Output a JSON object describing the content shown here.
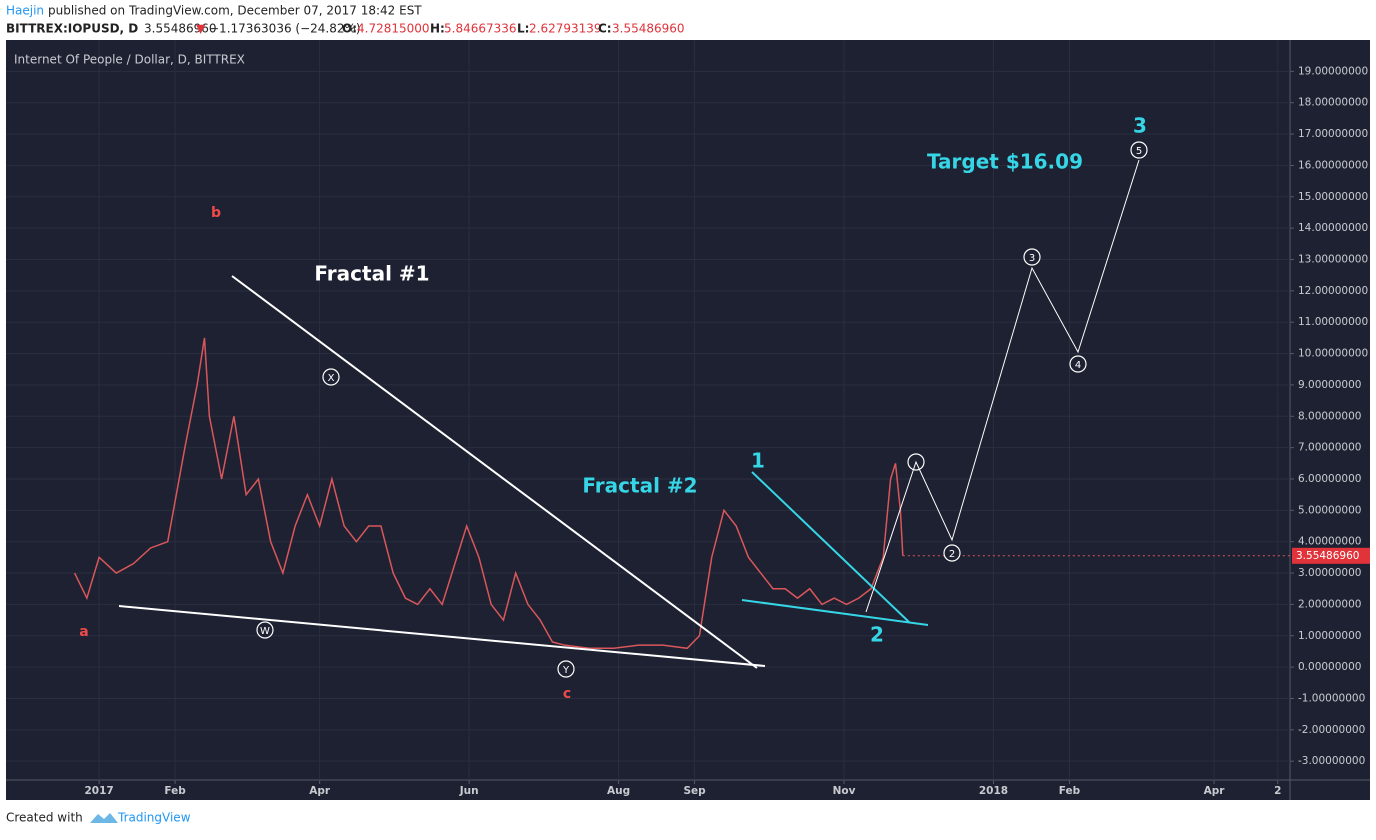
{
  "header": {
    "author": "Haejin",
    "published": "published on TradingView.com, December 07, 2017 18:42 EST",
    "symbol": "BITTREX:IOPUSD, D",
    "last": "3.55486960",
    "arrow": "▼",
    "change": "−1.17363036 (−24.82%)",
    "open_label": "O:",
    "open": "4.72815000",
    "high_label": "H:",
    "high": "5.84667336",
    "low_label": "L:",
    "low": "2.62793139",
    "close_label": "C:",
    "close": "3.55486960"
  },
  "footer": {
    "created": "Created with",
    "brand": "TradingView"
  },
  "annotations": {
    "a": "a",
    "b": "b",
    "c": "c",
    "fractal1": "Fractal #1",
    "fractal2": "Fractal #2",
    "w1": "1",
    "w2": "2",
    "w3": "3",
    "target": "Target $16.09",
    "cx": "X",
    "cw": "W",
    "cy": "Y",
    "c2": "2",
    "c3": "3",
    "c4": "4",
    "c5": "5"
  },
  "chart_data": {
    "type": "line",
    "title": "Internet Of People / Dollar, D, BITTREX",
    "last_price_label": "3.55486960",
    "xlim": [
      -38,
      486
    ],
    "ylim": [
      -3.6,
      20.0
    ],
    "xticks": [
      {
        "value": 0,
        "label": "2017"
      },
      {
        "value": 31,
        "label": "Feb"
      },
      {
        "value": 90,
        "label": "Apr"
      },
      {
        "value": 151,
        "label": "Jun"
      },
      {
        "value": 212,
        "label": "Aug"
      },
      {
        "value": 243,
        "label": "Sep"
      },
      {
        "value": 304,
        "label": "Nov"
      },
      {
        "value": 365,
        "label": "2018"
      },
      {
        "value": 396,
        "label": "Feb"
      },
      {
        "value": 455,
        "label": "Apr"
      },
      {
        "value": 481,
        "label": "2"
      }
    ],
    "yticks": [
      {
        "value": -3,
        "label": "-3.00000000"
      },
      {
        "value": -2,
        "label": "-2.00000000"
      },
      {
        "value": -1,
        "label": "-1.00000000"
      },
      {
        "value": 0,
        "label": "0.00000000"
      },
      {
        "value": 1,
        "label": "1.00000000"
      },
      {
        "value": 2,
        "label": "2.00000000"
      },
      {
        "value": 3,
        "label": "3.00000000"
      },
      {
        "value": 4,
        "label": "4.00000000"
      },
      {
        "value": 5,
        "label": "5.00000000"
      },
      {
        "value": 6,
        "label": "6.00000000"
      },
      {
        "value": 7,
        "label": "7.00000000"
      },
      {
        "value": 8,
        "label": "8.00000000"
      },
      {
        "value": 9,
        "label": "9.00000000"
      },
      {
        "value": 10,
        "label": "10.00000000"
      },
      {
        "value": 11,
        "label": "11.00000000"
      },
      {
        "value": 12,
        "label": "12.00000000"
      },
      {
        "value": 13,
        "label": "13.00000000"
      },
      {
        "value": 14,
        "label": "14.00000000"
      },
      {
        "value": 15,
        "label": "15.00000000"
      },
      {
        "value": 16,
        "label": "16.00000000"
      },
      {
        "value": 17,
        "label": "17.00000000"
      },
      {
        "value": 18,
        "label": "18.00000000"
      },
      {
        "value": 19,
        "label": "19.00000000"
      }
    ],
    "grid": true,
    "series": [
      {
        "color": "#d9575b",
        "x": [
          -10,
          -5,
          0,
          7,
          14,
          21,
          28,
          35,
          40,
          43,
          45,
          50,
          55,
          60,
          65,
          70,
          75,
          80,
          85,
          90,
          95,
          100,
          105,
          110,
          115,
          120,
          125,
          130,
          135,
          140,
          150,
          155,
          160,
          165,
          170,
          175,
          180,
          185,
          190,
          200,
          210,
          220,
          230,
          240,
          245,
          250,
          255,
          260,
          265,
          270,
          275,
          280,
          285,
          290,
          295,
          300,
          305,
          310,
          315,
          320,
          323,
          325,
          327,
          328
        ],
        "values": [
          3.0,
          2.2,
          3.5,
          3.0,
          3.3,
          3.8,
          4.0,
          7.0,
          9.0,
          10.5,
          8.0,
          6.0,
          8.0,
          5.5,
          6.0,
          4.0,
          3.0,
          4.5,
          5.5,
          4.5,
          6.0,
          4.5,
          4.0,
          4.5,
          4.5,
          3.0,
          2.2,
          2.0,
          2.5,
          2.0,
          4.5,
          3.5,
          2.0,
          1.5,
          3.0,
          2.0,
          1.5,
          0.8,
          0.7,
          0.6,
          0.6,
          0.7,
          0.7,
          0.6,
          1.0,
          3.5,
          5.0,
          4.5,
          3.5,
          3.0,
          2.5,
          2.5,
          2.2,
          2.5,
          2.0,
          2.2,
          2.0,
          2.2,
          2.5,
          3.5,
          6.0,
          6.5,
          5.0,
          3.55
        ]
      }
    ]
  }
}
